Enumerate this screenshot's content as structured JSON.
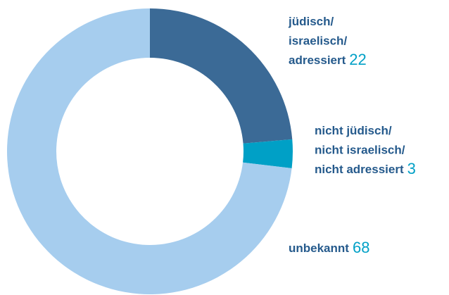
{
  "chart_data": {
    "type": "donut",
    "categories": [
      "jüdisch/\nisraelisch/\nadressiert",
      "nicht jüdisch/\nnicht israelisch/\nnicht adressiert",
      "unbekannt"
    ],
    "values": [
      22,
      3,
      68
    ],
    "colors": [
      "#3b6a96",
      "#00a0c6",
      "#a6cdee"
    ]
  }
}
